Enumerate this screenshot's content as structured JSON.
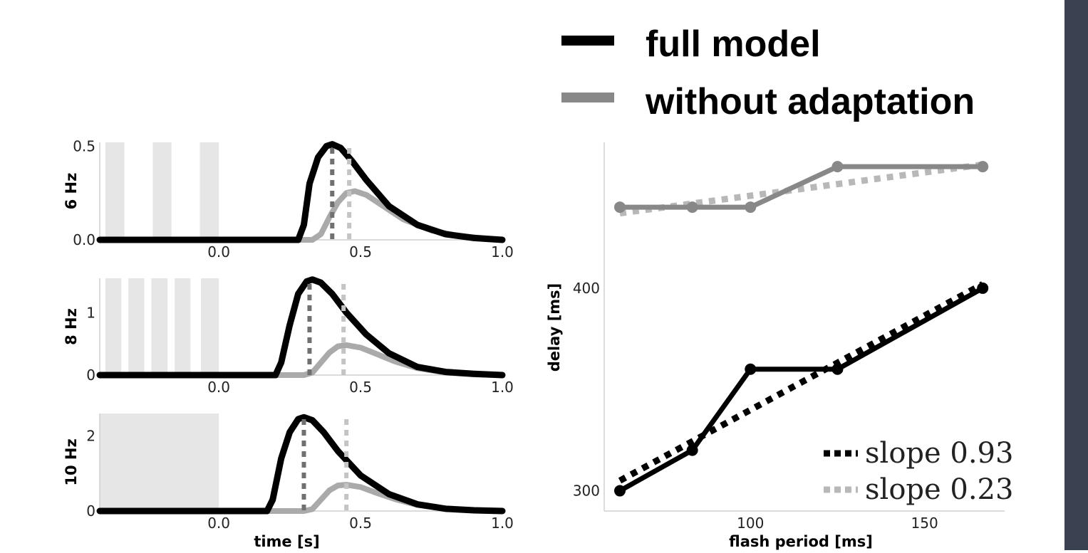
{
  "legend": [
    {
      "label": "full model",
      "color": "#000000"
    },
    {
      "label": "without adaptation",
      "color": "#888888"
    }
  ],
  "chart_data": [
    {
      "type": "line",
      "panel": "6 Hz",
      "ylabel": "6 Hz",
      "xlim": [
        -0.42,
        1.0
      ],
      "ylim": [
        0,
        0.52
      ],
      "xticks": [
        "0.0",
        "0.5",
        "1.0"
      ],
      "xtick_values": [
        0,
        0.5,
        1.0
      ],
      "yticks": [
        "0.0",
        "0.5"
      ],
      "ytick_values": [
        0,
        0.5
      ],
      "flashes": [
        [
          -0.4,
          -0.333
        ],
        [
          -0.233,
          -0.167
        ],
        [
          -0.067,
          0.0
        ]
      ],
      "series": [
        {
          "name": "full model",
          "x": [
            -0.42,
            0.28,
            0.3,
            0.32,
            0.35,
            0.38,
            0.4,
            0.43,
            0.47,
            0.52,
            0.6,
            0.7,
            0.8,
            0.9,
            1.0
          ],
          "y": [
            0,
            0,
            0.08,
            0.3,
            0.44,
            0.5,
            0.51,
            0.49,
            0.42,
            0.32,
            0.18,
            0.08,
            0.03,
            0.01,
            0.0
          ]
        },
        {
          "name": "without adaptation",
          "x": [
            -0.42,
            0.33,
            0.36,
            0.39,
            0.42,
            0.45,
            0.48,
            0.52,
            0.58,
            0.65,
            0.75,
            0.85,
            1.0
          ],
          "y": [
            0,
            0,
            0.03,
            0.12,
            0.2,
            0.25,
            0.26,
            0.24,
            0.18,
            0.11,
            0.05,
            0.02,
            0.0
          ]
        }
      ],
      "peak_markers": [
        {
          "x": 0.4,
          "series": "full model"
        },
        {
          "x": 0.46,
          "series": "without adaptation"
        }
      ]
    },
    {
      "type": "line",
      "panel": "8 Hz",
      "ylabel": "8 Hz",
      "xlim": [
        -0.42,
        1.0
      ],
      "ylim": [
        0,
        1.55
      ],
      "xticks": [
        "0.0",
        "0.5",
        "1.0"
      ],
      "xtick_values": [
        0,
        0.5,
        1.0
      ],
      "yticks": [
        "0",
        "1"
      ],
      "ytick_values": [
        0,
        1
      ],
      "flashes": [
        [
          -0.4,
          -0.344
        ],
        [
          -0.319,
          -0.263
        ],
        [
          -0.238,
          -0.181
        ],
        [
          -0.156,
          -0.1
        ],
        [
          -0.063,
          0.0
        ]
      ],
      "series": [
        {
          "name": "full model",
          "x": [
            -0.42,
            0.2,
            0.22,
            0.25,
            0.28,
            0.31,
            0.33,
            0.36,
            0.4,
            0.45,
            0.52,
            0.6,
            0.7,
            0.8,
            0.9,
            1.0
          ],
          "y": [
            0,
            0,
            0.2,
            0.8,
            1.3,
            1.5,
            1.53,
            1.48,
            1.3,
            1.0,
            0.65,
            0.35,
            0.13,
            0.05,
            0.02,
            0.0
          ]
        },
        {
          "name": "without adaptation",
          "x": [
            -0.42,
            0.3,
            0.33,
            0.36,
            0.39,
            0.42,
            0.45,
            0.5,
            0.55,
            0.62,
            0.7,
            0.8,
            0.9,
            1.0
          ],
          "y": [
            0,
            0,
            0.04,
            0.2,
            0.36,
            0.46,
            0.48,
            0.44,
            0.35,
            0.22,
            0.11,
            0.04,
            0.01,
            0.0
          ]
        }
      ],
      "peak_markers": [
        {
          "x": 0.32,
          "series": "full model"
        },
        {
          "x": 0.44,
          "series": "without adaptation"
        }
      ]
    },
    {
      "type": "line",
      "panel": "10 Hz",
      "ylabel": "10 Hz",
      "xlim": [
        -0.42,
        1.0
      ],
      "ylim": [
        0,
        2.6
      ],
      "xticks": [
        "0.0",
        "0.5",
        "1.0"
      ],
      "xtick_values": [
        0,
        0.5,
        1.0
      ],
      "yticks": [
        "0",
        "2"
      ],
      "ytick_values": [
        0,
        2
      ],
      "xlabel": "time [s]",
      "flashes": [
        [
          -0.42,
          0.0
        ]
      ],
      "series": [
        {
          "name": "full model",
          "x": [
            -0.42,
            0.17,
            0.19,
            0.22,
            0.25,
            0.28,
            0.3,
            0.33,
            0.37,
            0.42,
            0.5,
            0.6,
            0.7,
            0.8,
            0.9,
            1.0
          ],
          "y": [
            0,
            0,
            0.3,
            1.4,
            2.1,
            2.45,
            2.5,
            2.42,
            2.1,
            1.6,
            0.95,
            0.45,
            0.18,
            0.06,
            0.02,
            0.0
          ]
        },
        {
          "name": "without adaptation",
          "x": [
            -0.42,
            0.3,
            0.33,
            0.36,
            0.39,
            0.42,
            0.45,
            0.5,
            0.55,
            0.62,
            0.7,
            0.8,
            0.9,
            1.0
          ],
          "y": [
            0,
            0,
            0.05,
            0.3,
            0.55,
            0.68,
            0.7,
            0.64,
            0.5,
            0.32,
            0.16,
            0.06,
            0.02,
            0.0
          ]
        }
      ],
      "peak_markers": [
        {
          "x": 0.3,
          "series": "full model"
        },
        {
          "x": 0.45,
          "series": "without adaptation"
        }
      ]
    },
    {
      "type": "line",
      "xlabel": "flash period [ms]",
      "ylabel": "delay [ms]",
      "xlim": [
        58,
        173
      ],
      "ylim": [
        290,
        472
      ],
      "xticks": [
        "100",
        "150"
      ],
      "xtick_values": [
        100,
        150
      ],
      "yticks": [
        "300",
        "400"
      ],
      "ytick_values": [
        300,
        400
      ],
      "series": [
        {
          "name": "full model",
          "x": [
            62.5,
            83.3,
            100,
            125,
            166.7
          ],
          "y": [
            300,
            320,
            360,
            360,
            400
          ],
          "color": "#000000"
        },
        {
          "name": "without adaptation",
          "x": [
            62.5,
            83.3,
            100,
            125,
            166.7
          ],
          "y": [
            440,
            440,
            440,
            460,
            460
          ],
          "color": "#888888"
        }
      ],
      "fits": [
        {
          "label": "slope 0.93",
          "x": [
            62.5,
            166.7
          ],
          "y": [
            305,
            402
          ],
          "color": "#000000"
        },
        {
          "label": "slope 0.23",
          "x": [
            62.5,
            166.7
          ],
          "y": [
            437,
            461
          ],
          "color": "#b8b8b8"
        }
      ]
    }
  ]
}
